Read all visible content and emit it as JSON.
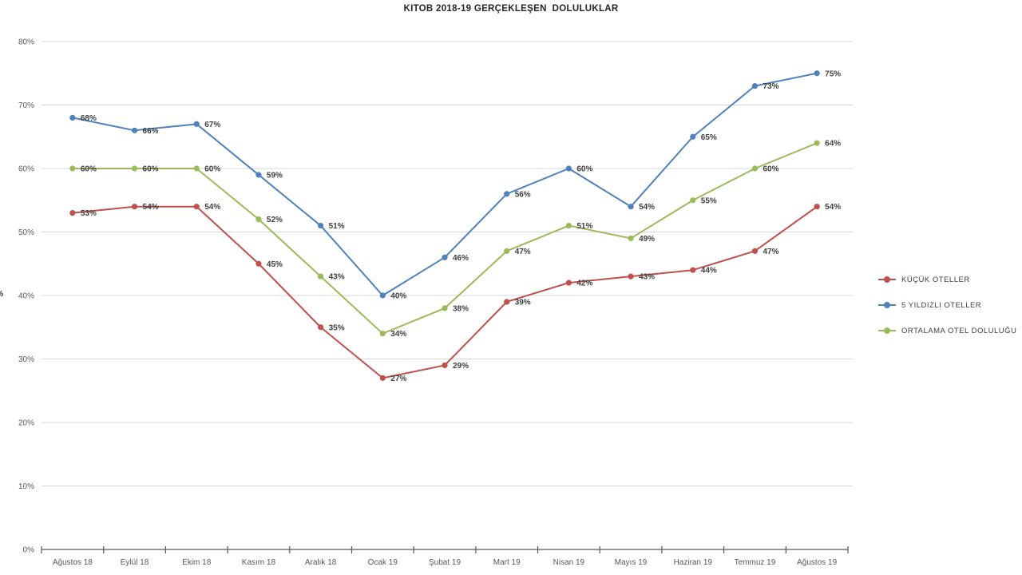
{
  "chart_data": {
    "type": "line",
    "title": "KITOB 2018-19 GERÇEKLEŞEN  DOLULUKLAR",
    "y_axis_title_fragment": "%",
    "categories": [
      "Ağustos 18",
      "Eylül 18",
      "Ekim 18",
      "Kasım 18",
      "Aralık 18",
      "Ocak 19",
      "Şubat 19",
      "Mart 19",
      "Nisan 19",
      "Mayıs 19",
      "Haziran 19",
      "Temmuz 19",
      "Ağustos 19"
    ],
    "series": [
      {
        "name": "KÜÇÜK OTELLER",
        "color": "#C0504D",
        "values": [
          53,
          54,
          54,
          45,
          35,
          27,
          29,
          39,
          42,
          43,
          44,
          47,
          54
        ]
      },
      {
        "name": "5 YILDIZLI OTELLER",
        "color": "#4F81BD",
        "values": [
          68,
          66,
          67,
          59,
          51,
          40,
          46,
          56,
          60,
          54,
          65,
          73,
          75
        ]
      },
      {
        "name": "ORTALAMA OTEL DOLULUĞU",
        "color": "#9BBB59",
        "values": [
          60,
          60,
          60,
          52,
          43,
          34,
          38,
          47,
          51,
          49,
          55,
          60,
          64
        ]
      }
    ],
    "y_ticks": [
      "0%",
      "10%",
      "20%",
      "30%",
      "40%",
      "50%",
      "60%",
      "70%",
      "80%"
    ],
    "ylim": [
      0,
      80
    ],
    "grid": true,
    "data_labels": true,
    "data_label_suffix": "%",
    "legend_position": "right"
  },
  "colors": {
    "gridline": "#D9D9D9",
    "axis": "#595959",
    "tick_label": "#595959",
    "data_label": "#404040",
    "title": "#262626"
  }
}
